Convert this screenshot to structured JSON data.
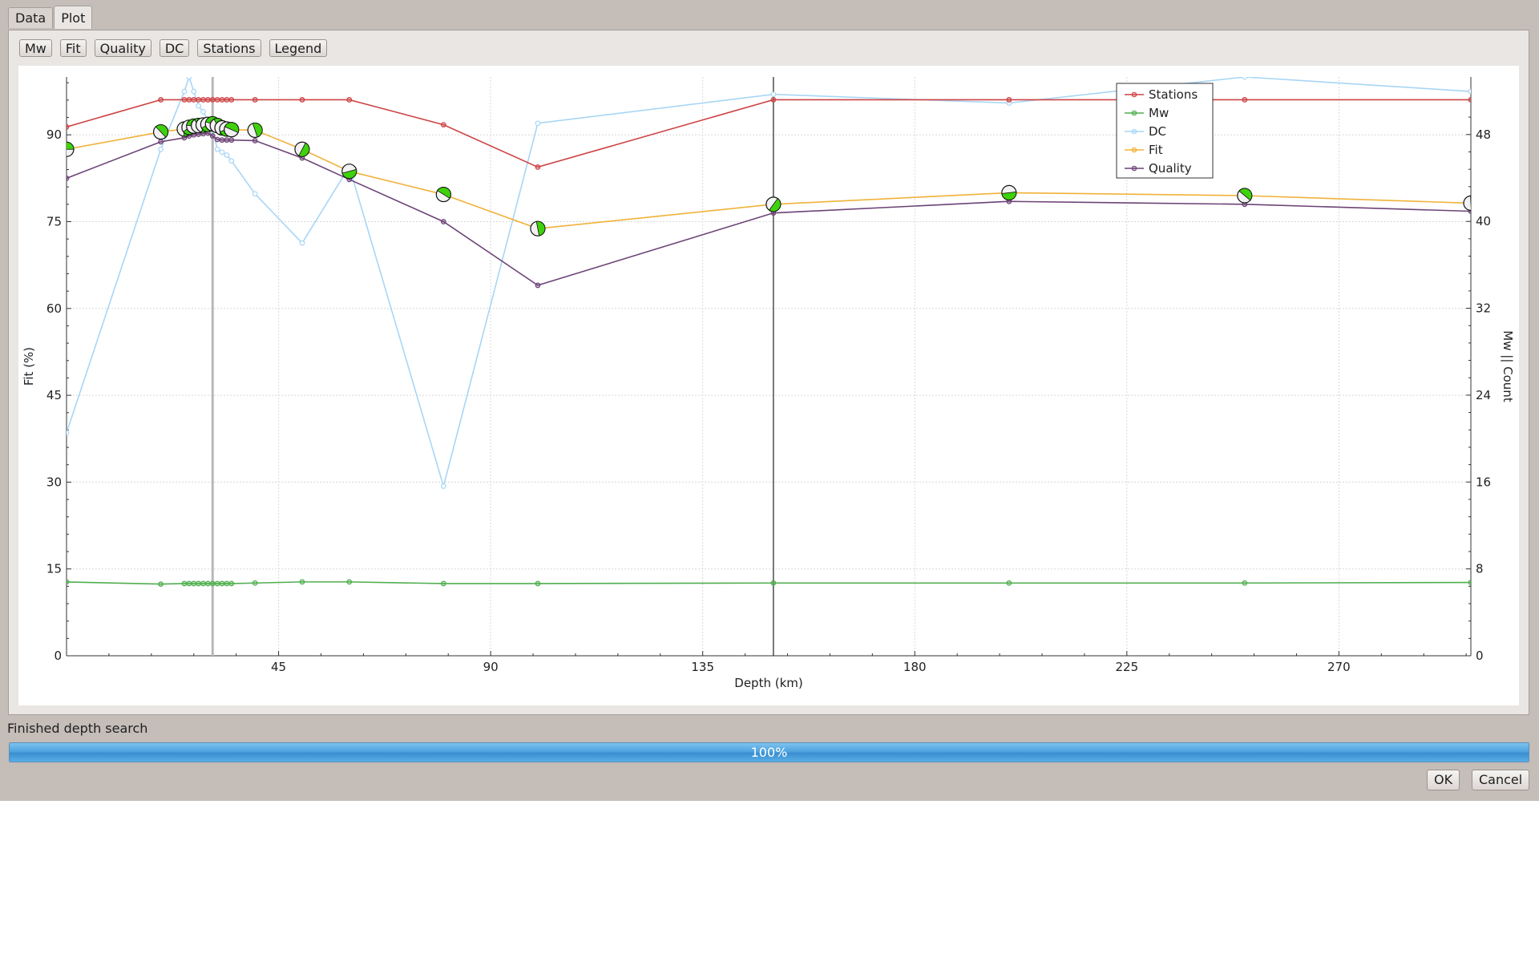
{
  "tabs": [
    {
      "label": "Data",
      "active": false
    },
    {
      "label": "Plot",
      "active": true
    }
  ],
  "toolbar": [
    "Mw",
    "Fit",
    "Quality",
    "DC",
    "Stations",
    "Legend"
  ],
  "status_text": "Finished depth search",
  "progress": {
    "value": 100,
    "label": "100%"
  },
  "buttons": {
    "ok": "OK",
    "cancel": "Cancel"
  },
  "colors": {
    "stations": "#cd4446",
    "mw": "#4fae4f",
    "dc": "#a8d6f5",
    "fit": "#f0b23a",
    "quality": "#6c4376",
    "beachball": "#3ed10c"
  },
  "chart_data": {
    "type": "line",
    "xlabel": "Depth (km)",
    "ylabel_left": "Fit (%)",
    "ylabel_right": "Mw || Count",
    "xlim": [
      0,
      298
    ],
    "ylim_left": [
      0,
      100
    ],
    "ylim_right": [
      0,
      53.3
    ],
    "xticks": [
      45,
      90,
      135,
      180,
      225,
      270
    ],
    "yticks_left": [
      0,
      15,
      30,
      45,
      60,
      75,
      90
    ],
    "yticks_right": [
      0,
      8,
      16,
      24,
      32,
      40,
      48
    ],
    "grid": true,
    "legend_position": "top-right",
    "selected_depth": 31,
    "best_depth": 150,
    "x": [
      0,
      20,
      25,
      26,
      27,
      28,
      29,
      30,
      31,
      32,
      33,
      34,
      35,
      40,
      50,
      60,
      80,
      100,
      150,
      200,
      250,
      298
    ],
    "series": [
      {
        "name": "Stations",
        "axis": "right",
        "values": [
          48.7,
          51.2,
          51.2,
          51.2,
          51.2,
          51.2,
          51.2,
          51.2,
          51.2,
          51.2,
          51.2,
          51.2,
          51.2,
          51.2,
          51.2,
          51.2,
          48.9,
          45.0,
          51.2,
          51.2,
          51.2,
          51.2
        ]
      },
      {
        "name": "Mw",
        "axis": "right",
        "values": [
          6.8,
          6.6,
          6.65,
          6.65,
          6.65,
          6.65,
          6.65,
          6.65,
          6.65,
          6.65,
          6.65,
          6.65,
          6.65,
          6.7,
          6.8,
          6.8,
          6.65,
          6.65,
          6.7,
          6.7,
          6.7,
          6.75
        ]
      },
      {
        "name": "DC",
        "axis": "left",
        "values": [
          38.5,
          87.5,
          97.5,
          100,
          97.5,
          95.0,
          94.0,
          92.5,
          91.0,
          87.5,
          87.0,
          86.5,
          85.5,
          79.8,
          71.3,
          84.5,
          29.3,
          92.0,
          97.0,
          95.5,
          100,
          97.5
        ]
      },
      {
        "name": "Fit",
        "axis": "left",
        "values": [
          87.5,
          90.5,
          91.0,
          91.3,
          91.5,
          91.6,
          91.7,
          91.8,
          91.9,
          91.6,
          91.2,
          91.0,
          90.9,
          90.8,
          87.5,
          83.7,
          79.7,
          73.8,
          78.0,
          80.0,
          79.5,
          78.2
        ]
      },
      {
        "name": "Quality",
        "axis": "left",
        "values": [
          82.5,
          88.8,
          89.5,
          89.8,
          90.0,
          90.1,
          90.2,
          90.3,
          89.8,
          89.2,
          89.1,
          89.1,
          89.1,
          89.0,
          86.0,
          82.3,
          75.0,
          64.0,
          76.5,
          78.5,
          78.0,
          76.8
        ]
      }
    ]
  }
}
